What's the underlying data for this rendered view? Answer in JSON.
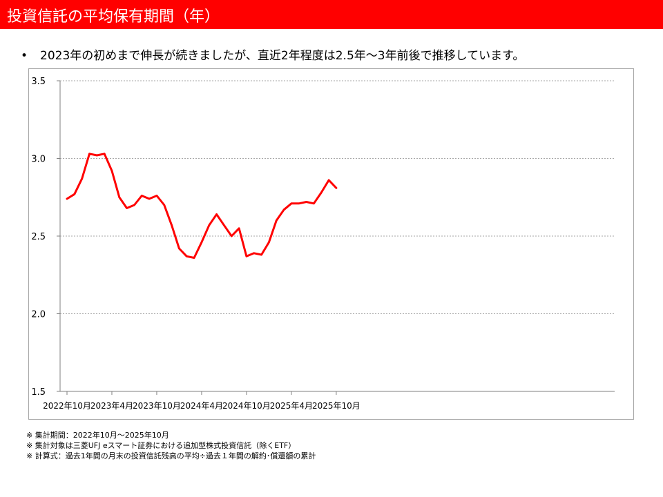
{
  "header": {
    "title": "投資信託の平均保有期間（年）",
    "bar_color": "#FF0000"
  },
  "summary": {
    "bullet": "•",
    "text": "2023年の初めまで伸長が続きましたが、直近2年程度は2.5年～3年前後で推移しています。"
  },
  "notes": [
    "※  集計期間：2022年10月～2025年10月",
    "※  集計対象は三菱UFJ eスマート証券における追加型株式投資信託（除くETF）",
    "※  計算式：過去1年間の月末の投資信託残高の平均÷過去１年間の解約･償還額の累計"
  ],
  "chart_data": {
    "type": "line",
    "title": "",
    "xlabel": "",
    "ylabel": "",
    "ylim": [
      1.5,
      3.5
    ],
    "yticks": [
      "1.5",
      "2.0",
      "2.5",
      "3.0",
      "3.5"
    ],
    "grid": true,
    "legend": "none",
    "x_tick_labels": [
      "2022年10月",
      "2023年4月",
      "2023年10月",
      "2024年4月",
      "2024年10月",
      "2025年4月",
      "2025年10月"
    ],
    "x": [
      "2022-10",
      "2022-11",
      "2022-12",
      "2023-01",
      "2023-02",
      "2023-03",
      "2023-04",
      "2023-05",
      "2023-06",
      "2023-07",
      "2023-08",
      "2023-09",
      "2023-10",
      "2023-11",
      "2023-12",
      "2024-01",
      "2024-02",
      "2024-03",
      "2024-04",
      "2024-05",
      "2024-06",
      "2024-07",
      "2024-08",
      "2024-09",
      "2024-10",
      "2024-11",
      "2024-12",
      "2025-01",
      "2025-02",
      "2025-03",
      "2025-04",
      "2025-05",
      "2025-06",
      "2025-07",
      "2025-08",
      "2025-09",
      "2025-10"
    ],
    "series": [
      {
        "color": "#FF0000",
        "values": [
          2.74,
          2.77,
          2.87,
          3.03,
          3.02,
          3.03,
          2.92,
          2.75,
          2.68,
          2.7,
          2.76,
          2.74,
          2.76,
          2.7,
          2.57,
          2.42,
          2.37,
          2.36,
          2.46,
          2.57,
          2.64,
          2.57,
          2.5,
          2.55,
          2.37,
          2.39,
          2.38,
          2.46,
          2.6,
          2.67,
          2.71,
          2.71,
          2.72,
          2.71,
          2.78,
          2.86,
          2.81
        ]
      }
    ]
  }
}
